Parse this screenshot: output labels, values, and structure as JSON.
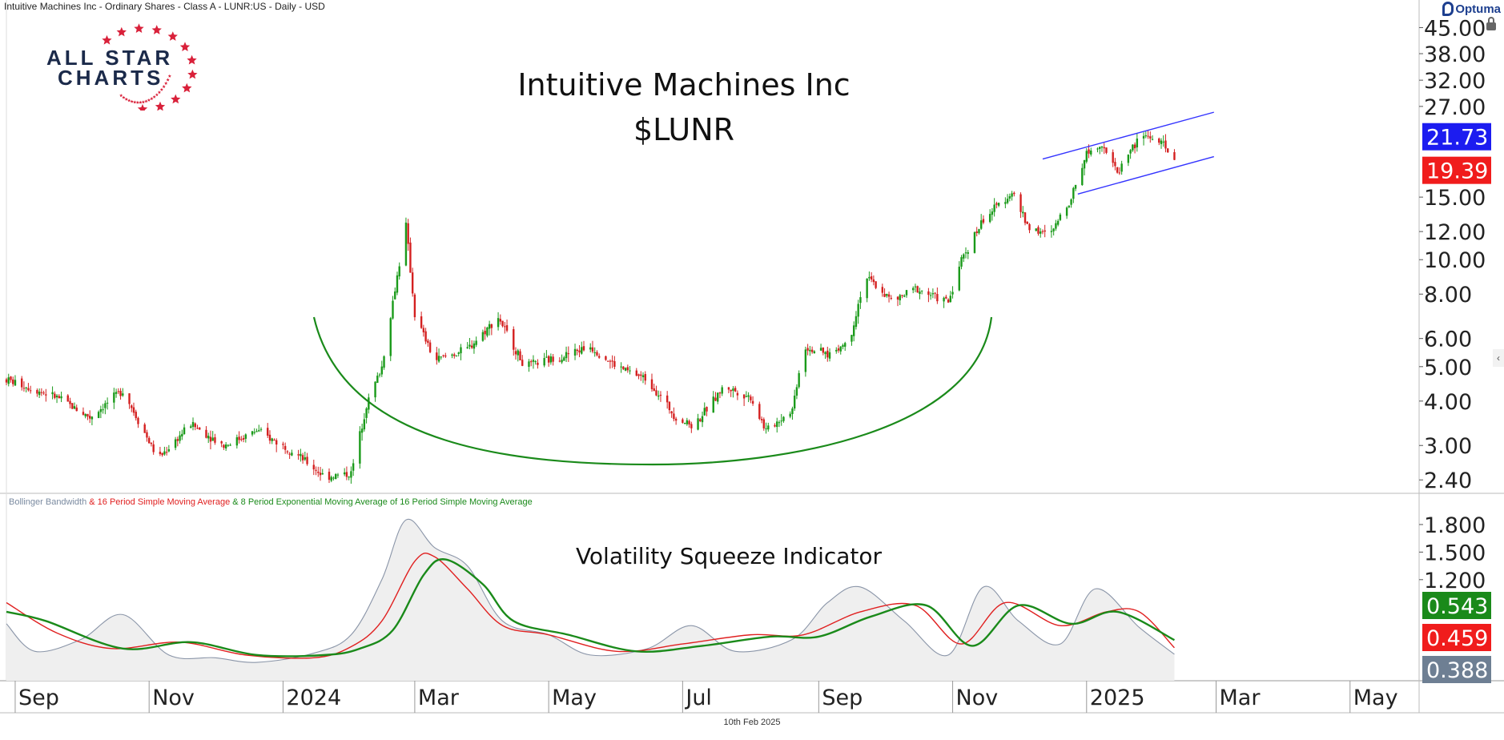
{
  "header": {
    "instrument": "Intuitive Machines Inc - Ordinary Shares - Class A - LUNR:US - Daily - USD"
  },
  "brand": {
    "name": "Optuma"
  },
  "logo": {
    "line1": "ALL STAR",
    "line2": "CHARTS",
    "star_color": "#d9213a",
    "text_color": "#1b2a4a"
  },
  "title": {
    "line1": "Intuitive Machines Inc",
    "line2": "$LUNR"
  },
  "footer": {
    "date": "10th Feb 2025"
  },
  "indicator": {
    "title": "Volatility Squeeze Indicator",
    "legend": [
      {
        "text": "Bollinger Bandwidth",
        "color": "#7a8aa0"
      },
      {
        "text": " & 16 Period Simple Moving Average",
        "color": "#e02020"
      },
      {
        "text": " & 8 Period Exponential Moving Average of 16 Period Simple Moving Average",
        "color": "#1a8a1a"
      }
    ]
  },
  "chart_data": [
    {
      "type": "candlestick",
      "title": "Intuitive Machines Inc $LUNR",
      "scale": "log",
      "ylim": [
        2.2,
        48
      ],
      "y_ticks": [
        "45.00",
        "38.00",
        "32.00",
        "27.00",
        "15.00",
        "12.00",
        "10.00",
        "8.00",
        "6.00",
        "5.00",
        "4.00",
        "3.00",
        "2.40"
      ],
      "x_ticks": [
        "Sep",
        "Nov",
        "2024",
        "Mar",
        "May",
        "Jul",
        "Sep",
        "Nov",
        "2025",
        "Mar",
        "May"
      ],
      "x_range": [
        "2023-08-28",
        "2025-05-31"
      ],
      "price_path": [
        [
          "2023-08-28",
          4.6
        ],
        [
          "2023-09-20",
          4.1
        ],
        [
          "2023-10-05",
          3.6
        ],
        [
          "2023-10-20",
          4.3
        ],
        [
          "2023-11-05",
          2.75
        ],
        [
          "2023-11-20",
          3.45
        ],
        [
          "2023-12-05",
          3.0
        ],
        [
          "2023-12-20",
          3.3
        ],
        [
          "2024-01-05",
          2.9
        ],
        [
          "2024-01-20",
          2.45
        ],
        [
          "2024-02-01",
          2.5
        ],
        [
          "2024-02-08",
          3.9
        ],
        [
          "2024-02-15",
          5.0
        ],
        [
          "2024-02-22",
          9.0
        ],
        [
          "2024-02-26",
          12.5
        ],
        [
          "2024-03-01",
          7.0
        ],
        [
          "2024-03-10",
          5.2
        ],
        [
          "2024-03-25",
          5.6
        ],
        [
          "2024-04-08",
          6.9
        ],
        [
          "2024-04-20",
          5.0
        ],
        [
          "2024-05-05",
          5.3
        ],
        [
          "2024-05-20",
          5.7
        ],
        [
          "2024-06-01",
          5.0
        ],
        [
          "2024-06-15",
          4.6
        ],
        [
          "2024-06-28",
          3.6
        ],
        [
          "2024-07-06",
          3.4
        ],
        [
          "2024-07-20",
          4.4
        ],
        [
          "2024-08-01",
          4.1
        ],
        [
          "2024-08-08",
          3.3
        ],
        [
          "2024-08-20",
          3.8
        ],
        [
          "2024-08-25",
          5.7
        ],
        [
          "2024-09-05",
          5.4
        ],
        [
          "2024-09-15",
          5.9
        ],
        [
          "2024-09-22",
          9.0
        ],
        [
          "2024-10-05",
          7.6
        ],
        [
          "2024-10-15",
          8.3
        ],
        [
          "2024-10-30",
          7.6
        ],
        [
          "2024-11-05",
          10.0
        ],
        [
          "2024-11-15",
          13.0
        ],
        [
          "2024-11-28",
          15.5
        ],
        [
          "2024-12-05",
          12.5
        ],
        [
          "2024-12-15",
          11.6
        ],
        [
          "2024-12-25",
          15.0
        ],
        [
          "2025-01-01",
          20.0
        ],
        [
          "2025-01-08",
          21.3
        ],
        [
          "2025-01-15",
          17.5
        ],
        [
          "2025-01-20",
          20.0
        ],
        [
          "2025-01-27",
          22.5
        ],
        [
          "2025-02-03",
          21.5
        ],
        [
          "2025-02-10",
          19.39
        ]
      ],
      "price_labels": [
        {
          "text": "21.73",
          "value": 21.73,
          "color": "#1c1cf0"
        },
        {
          "text": "19.39",
          "value": 19.39,
          "color": "#f01c1c"
        }
      ],
      "annotations": [
        {
          "type": "rounding-bottom-arc",
          "color": "#1a8a1a"
        },
        {
          "type": "channel-line",
          "color": "#3333ff",
          "from": [
            "2024-12-12",
            19.2
          ],
          "to": [
            "2025-02-28",
            26.0
          ]
        },
        {
          "type": "channel-line",
          "color": "#3333ff",
          "from": [
            "2024-12-28",
            15.3
          ],
          "to": [
            "2025-02-28",
            19.5
          ]
        }
      ],
      "up_color": "#1a9a1a",
      "down_color": "#d42020"
    },
    {
      "type": "line",
      "title": "Volatility Squeeze Indicator",
      "ylim": [
        0.1,
        2.0
      ],
      "y_ticks": [
        "1.800",
        "1.500",
        "1.200"
      ],
      "series": [
        {
          "name": "Bollinger Bandwidth",
          "color": "#8a95a8",
          "fill": "#efefef",
          "values": [
            [
              "2023-08-28",
              0.72
            ],
            [
              "2023-09-10",
              0.42
            ],
            [
              "2023-10-01",
              0.55
            ],
            [
              "2023-10-20",
              0.82
            ],
            [
              "2023-11-10",
              0.38
            ],
            [
              "2023-12-01",
              0.35
            ],
            [
              "2023-12-20",
              0.3
            ],
            [
              "2024-01-15",
              0.4
            ],
            [
              "2024-02-01",
              0.6
            ],
            [
              "2024-02-15",
              1.2
            ],
            [
              "2024-02-26",
              1.85
            ],
            [
              "2024-03-10",
              1.55
            ],
            [
              "2024-03-25",
              1.35
            ],
            [
              "2024-04-10",
              0.75
            ],
            [
              "2024-05-01",
              0.6
            ],
            [
              "2024-05-20",
              0.38
            ],
            [
              "2024-06-15",
              0.45
            ],
            [
              "2024-07-05",
              0.7
            ],
            [
              "2024-07-25",
              0.42
            ],
            [
              "2024-08-20",
              0.55
            ],
            [
              "2024-09-05",
              0.95
            ],
            [
              "2024-09-20",
              1.12
            ],
            [
              "2024-10-10",
              0.75
            ],
            [
              "2024-10-30",
              0.38
            ],
            [
              "2024-11-15",
              1.12
            ],
            [
              "2024-12-01",
              0.75
            ],
            [
              "2024-12-20",
              0.5
            ],
            [
              "2025-01-05",
              1.1
            ],
            [
              "2025-01-25",
              0.68
            ],
            [
              "2025-02-10",
              0.388
            ]
          ]
        },
        {
          "name": "16 Period Simple Moving Average",
          "color": "#e02020",
          "values": [
            [
              "2023-08-28",
              0.95
            ],
            [
              "2023-09-20",
              0.62
            ],
            [
              "2023-10-15",
              0.45
            ],
            [
              "2023-11-15",
              0.52
            ],
            [
              "2023-12-15",
              0.38
            ],
            [
              "2024-01-15",
              0.35
            ],
            [
              "2024-02-01",
              0.47
            ],
            [
              "2024-02-15",
              0.75
            ],
            [
              "2024-03-01",
              1.4
            ],
            [
              "2024-03-10",
              1.45
            ],
            [
              "2024-03-25",
              1.1
            ],
            [
              "2024-04-10",
              0.7
            ],
            [
              "2024-05-01",
              0.6
            ],
            [
              "2024-06-01",
              0.42
            ],
            [
              "2024-07-01",
              0.5
            ],
            [
              "2024-08-01",
              0.6
            ],
            [
              "2024-08-25",
              0.6
            ],
            [
              "2024-09-20",
              0.85
            ],
            [
              "2024-10-15",
              0.92
            ],
            [
              "2024-11-05",
              0.5
            ],
            [
              "2024-11-25",
              0.95
            ],
            [
              "2024-12-20",
              0.7
            ],
            [
              "2025-01-10",
              0.85
            ],
            [
              "2025-01-25",
              0.85
            ],
            [
              "2025-02-10",
              0.459
            ]
          ]
        },
        {
          "name": "8 Period Exponential Moving Average of 16 Period Simple Moving Average",
          "color": "#1a8a1a",
          "values": [
            [
              "2023-08-28",
              0.85
            ],
            [
              "2023-09-15",
              0.75
            ],
            [
              "2023-10-20",
              0.45
            ],
            [
              "2023-11-20",
              0.52
            ],
            [
              "2023-12-20",
              0.38
            ],
            [
              "2024-01-20",
              0.38
            ],
            [
              "2024-02-05",
              0.45
            ],
            [
              "2024-02-20",
              0.65
            ],
            [
              "2024-03-05",
              1.25
            ],
            [
              "2024-03-15",
              1.42
            ],
            [
              "2024-04-01",
              1.15
            ],
            [
              "2024-04-15",
              0.75
            ],
            [
              "2024-05-10",
              0.6
            ],
            [
              "2024-06-10",
              0.42
            ],
            [
              "2024-07-10",
              0.48
            ],
            [
              "2024-08-10",
              0.58
            ],
            [
              "2024-09-01",
              0.58
            ],
            [
              "2024-09-25",
              0.8
            ],
            [
              "2024-10-20",
              0.92
            ],
            [
              "2024-11-10",
              0.48
            ],
            [
              "2024-12-01",
              0.92
            ],
            [
              "2024-12-25",
              0.72
            ],
            [
              "2025-01-15",
              0.85
            ],
            [
              "2025-02-10",
              0.543
            ]
          ]
        }
      ],
      "value_labels": [
        {
          "text": "0.543",
          "value": 0.543,
          "color": "#1a8a1a"
        },
        {
          "text": "0.459",
          "value": 0.459,
          "color": "#f01c1c"
        },
        {
          "text": "0.388",
          "value": 0.388,
          "color": "#6e7f93"
        }
      ]
    }
  ]
}
